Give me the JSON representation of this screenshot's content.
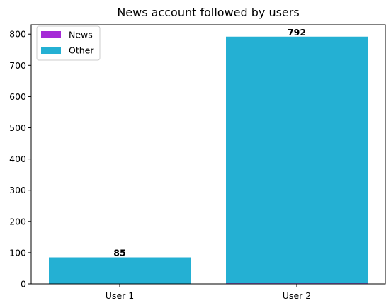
{
  "chart_data": {
    "type": "bar",
    "stacked": true,
    "title": "News account followed by users",
    "xlabel": "",
    "ylabel": "",
    "categories": [
      "User 1",
      "User 2"
    ],
    "series": [
      {
        "name": "News",
        "values": [
          0,
          2
        ],
        "color": "#a52ad6"
      },
      {
        "name": "Other",
        "values": [
          85,
          790
        ],
        "color": "#24b0d3"
      }
    ],
    "data_labels": [
      "85",
      "792"
    ],
    "ylim": [
      0,
      830
    ],
    "yticks": [
      0,
      100,
      200,
      300,
      400,
      500,
      600,
      700,
      800
    ],
    "grid": false,
    "legend_position": "top-left"
  }
}
